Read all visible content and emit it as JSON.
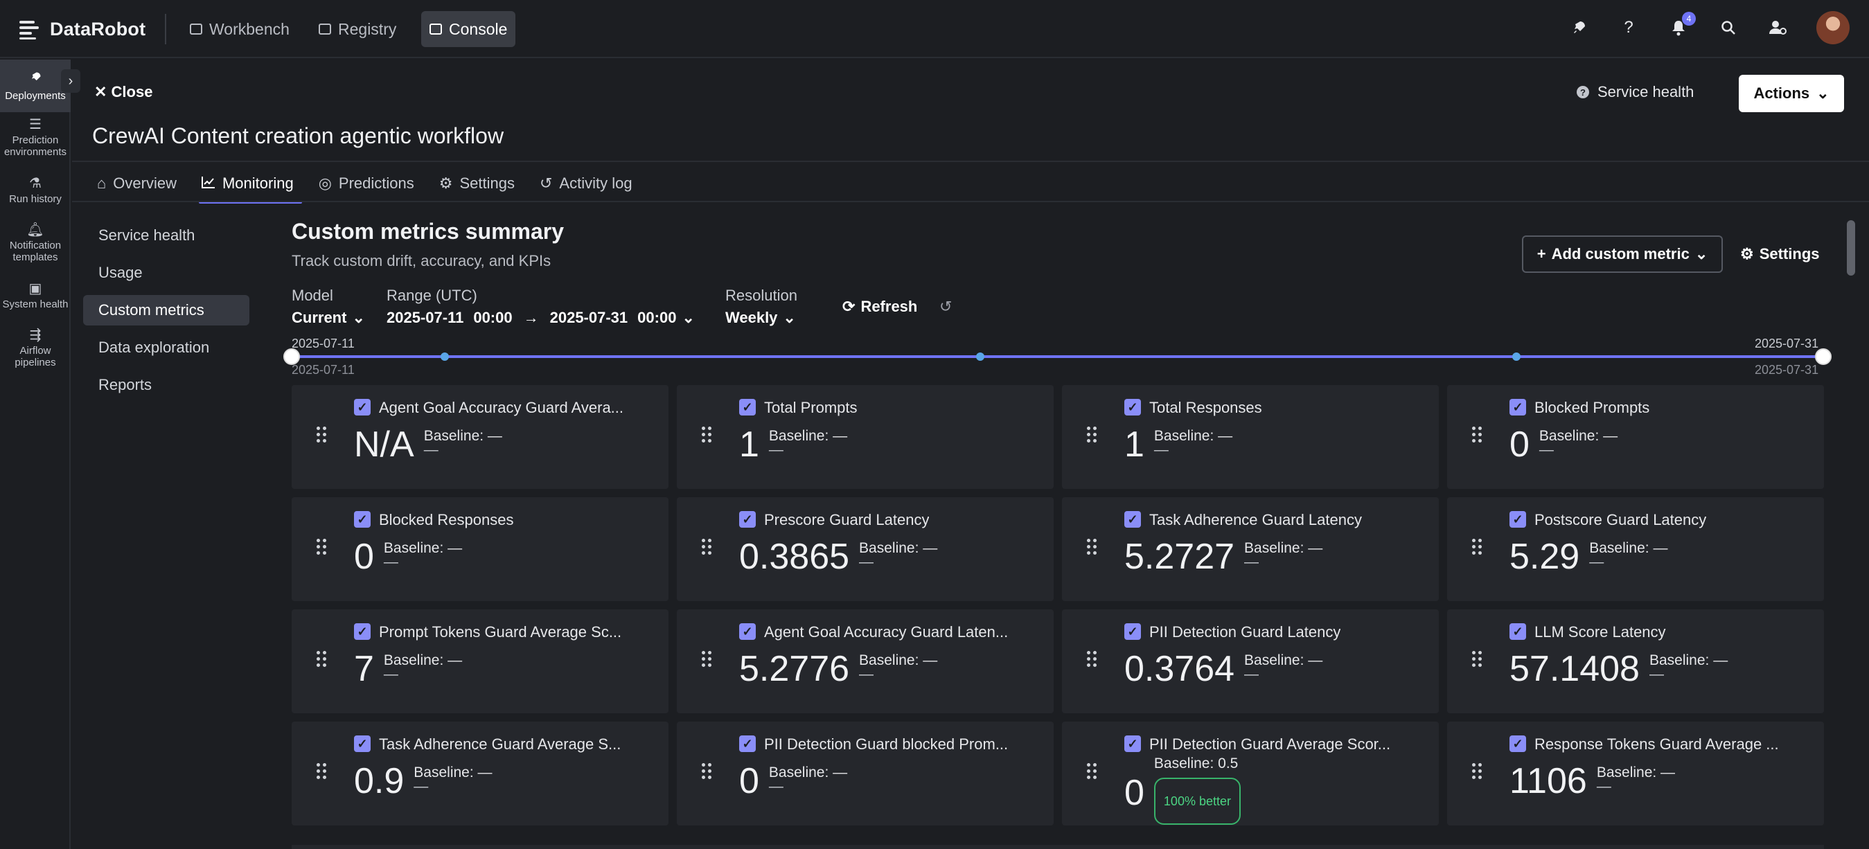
{
  "app": {
    "brand": "DataRobot",
    "nav": [
      {
        "label": "Workbench",
        "icon": "workbench-icon"
      },
      {
        "label": "Registry",
        "icon": "registry-icon"
      },
      {
        "label": "Console",
        "icon": "console-icon",
        "active": true
      }
    ],
    "notification_count": "4",
    "top_icons": [
      "rocket-icon",
      "help-icon",
      "bell-icon",
      "search-icon",
      "user-settings-icon",
      "avatar"
    ]
  },
  "rail": {
    "items": [
      {
        "label": "Deployments",
        "icon": "rocket-icon",
        "active": true
      },
      {
        "label": "Prediction environments",
        "icon": "server-icon"
      },
      {
        "label": "Run history",
        "icon": "flask-icon"
      },
      {
        "label": "Notification templates",
        "icon": "bell-icon"
      },
      {
        "label": "System health",
        "icon": "toolbox-icon"
      },
      {
        "label": "Airflow pipelines",
        "icon": "pipeline-icon"
      }
    ]
  },
  "header": {
    "close_label": "Close",
    "service_health_label": "Service health",
    "actions_label": "Actions",
    "title": "CrewAI Content creation agentic workflow",
    "tabs": [
      {
        "label": "Overview",
        "icon": "home-icon"
      },
      {
        "label": "Monitoring",
        "icon": "chart-line-icon",
        "active": true
      },
      {
        "label": "Predictions",
        "icon": "predictions-icon"
      },
      {
        "label": "Settings",
        "icon": "gear-icon"
      },
      {
        "label": "Activity log",
        "icon": "history-icon"
      }
    ]
  },
  "subnav": {
    "items": [
      {
        "label": "Service health"
      },
      {
        "label": "Usage"
      },
      {
        "label": "Custom metrics",
        "active": true
      },
      {
        "label": "Data exploration"
      },
      {
        "label": "Reports"
      }
    ]
  },
  "main": {
    "title": "Custom metrics summary",
    "subtitle": "Track custom drift, accuracy, and KPIs",
    "add_metric_label": "Add custom metric",
    "settings_label": "Settings",
    "model_label": "Model",
    "model_value": "Current",
    "range_label": "Range (UTC)",
    "range_start": "2025-07-11",
    "range_start_time": "00:00",
    "range_end": "2025-07-31",
    "range_end_time": "00:00",
    "resolution_label": "Resolution",
    "resolution_value": "Weekly",
    "refresh_label": "Refresh",
    "slider": {
      "start_label": "2025-07-11",
      "end_label": "2025-07-31",
      "start_label_below": "2025-07-11",
      "end_label_below": "2025-07-31"
    },
    "baseline_prefix": "Baseline:",
    "cards": [
      {
        "name": "Agent Goal Accuracy Guard Avera...",
        "value": "N/A",
        "baseline": "Baseline: —",
        "delta": "—"
      },
      {
        "name": "Total Prompts",
        "value": "1",
        "baseline": "Baseline: —",
        "delta": "—"
      },
      {
        "name": "Total Responses",
        "value": "1",
        "baseline": "Baseline: —",
        "delta": "—"
      },
      {
        "name": "Blocked Prompts",
        "value": "0",
        "baseline": "Baseline: —",
        "delta": "—"
      },
      {
        "name": "Blocked Responses",
        "value": "0",
        "baseline": "Baseline: —",
        "delta": "—"
      },
      {
        "name": "Prescore Guard Latency",
        "value": "0.3865",
        "baseline": "Baseline: —",
        "delta": "—"
      },
      {
        "name": "Task Adherence Guard Latency",
        "value": "5.2727",
        "baseline": "Baseline: —",
        "delta": "—"
      },
      {
        "name": "Postscore Guard Latency",
        "value": "5.29",
        "baseline": "Baseline: —",
        "delta": "—"
      },
      {
        "name": "Prompt Tokens Guard Average Sc...",
        "value": "7",
        "baseline": "Baseline: —",
        "delta": "—"
      },
      {
        "name": "Agent Goal Accuracy Guard Laten...",
        "value": "5.2776",
        "baseline": "Baseline: —",
        "delta": "—"
      },
      {
        "name": "PII Detection Guard Latency",
        "value": "0.3764",
        "baseline": "Baseline: —",
        "delta": "—"
      },
      {
        "name": "LLM Score Latency",
        "value": "57.1408",
        "baseline": "Baseline: —",
        "delta": "—"
      },
      {
        "name": "Task Adherence Guard Average S...",
        "value": "0.9",
        "baseline": "Baseline: —",
        "delta": "—"
      },
      {
        "name": "PII Detection Guard blocked Prom...",
        "value": "0",
        "baseline": "Baseline: —",
        "delta": "—"
      },
      {
        "name": "PII Detection Guard Average Scor...",
        "value": "0",
        "baseline": "Baseline: 0.5",
        "delta": "",
        "badge": "100% better"
      },
      {
        "name": "Response Tokens Guard Average ...",
        "value": "1106",
        "baseline": "Baseline: —",
        "delta": "—"
      }
    ]
  },
  "colors": {
    "accent": "#6f73f5",
    "background": "#1c1e22",
    "card": "#25272c",
    "positive": "#4cd483"
  }
}
